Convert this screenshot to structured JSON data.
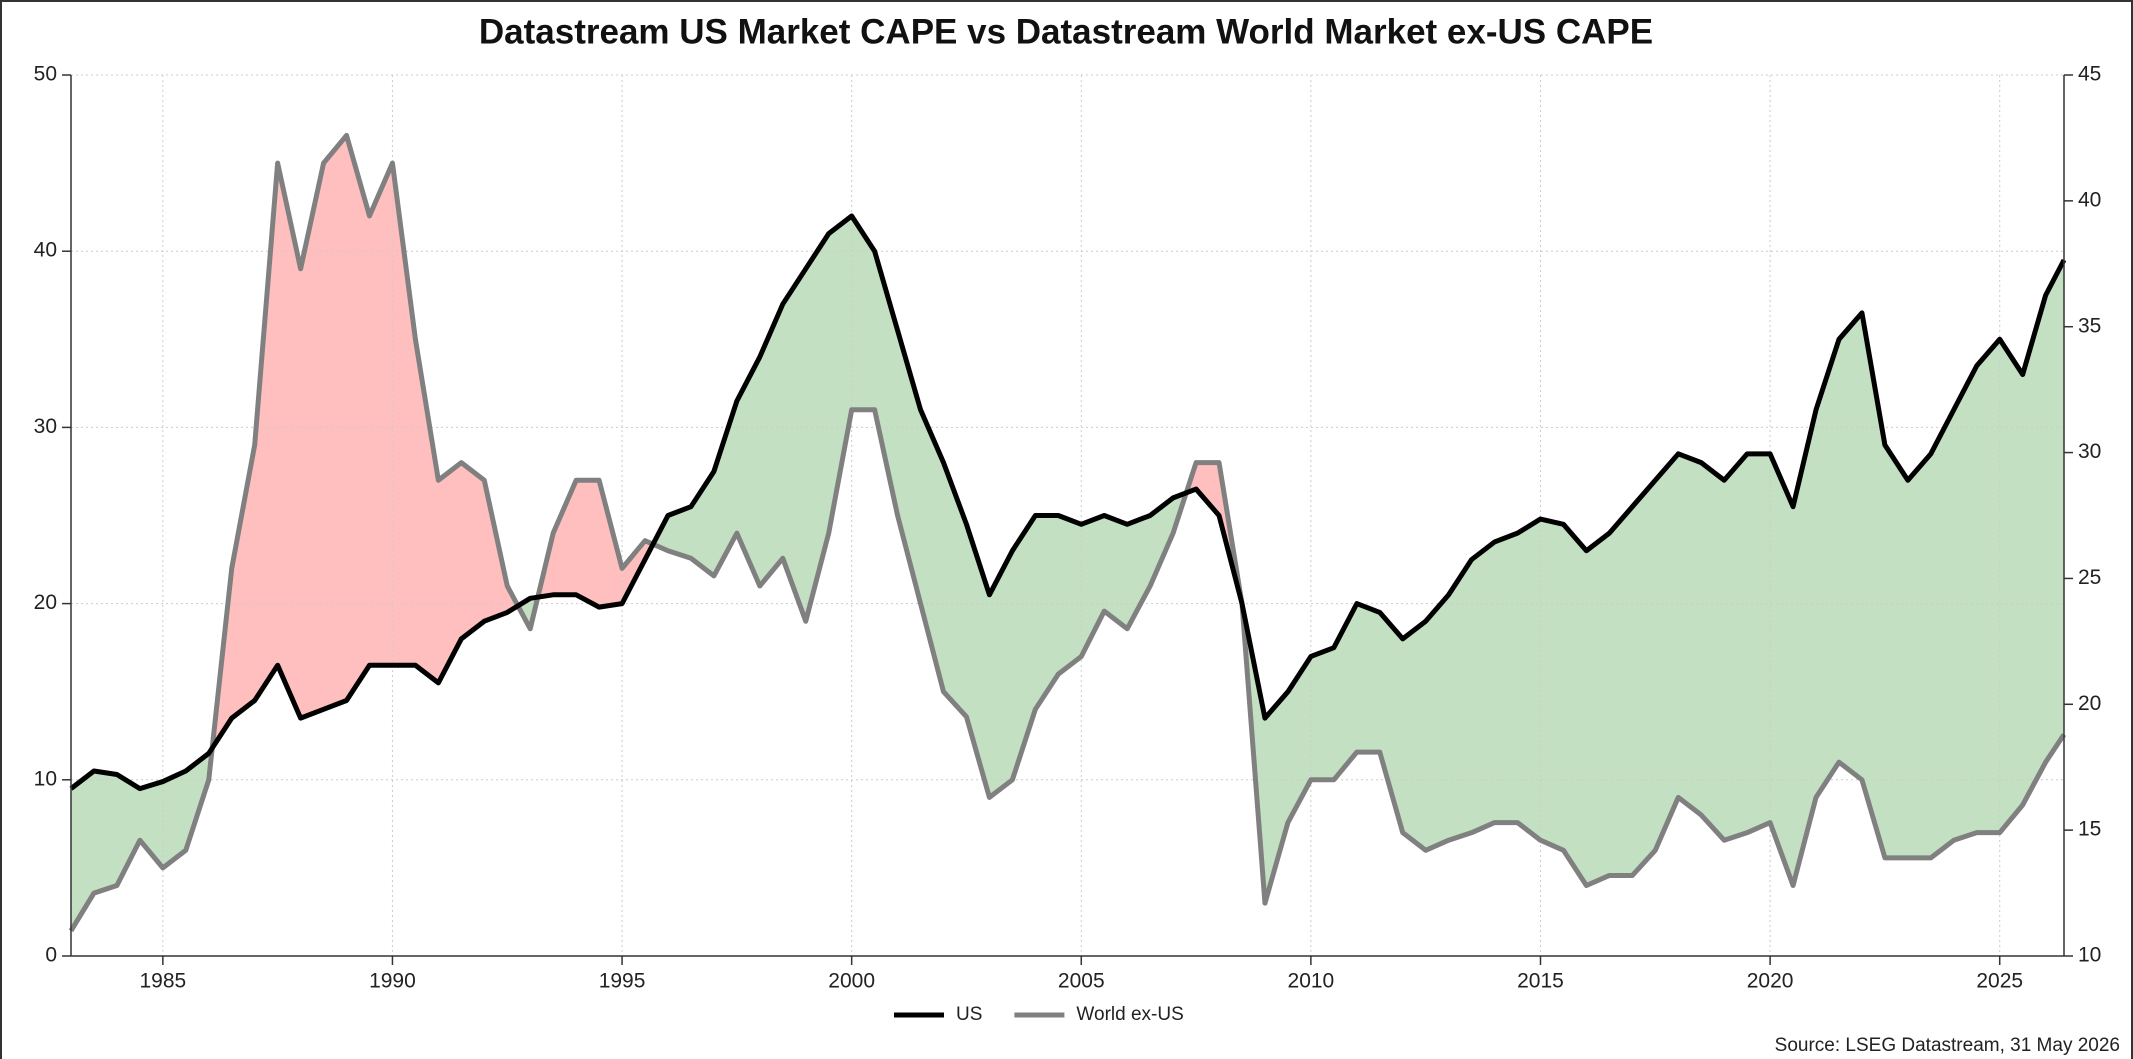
{
  "chart_data": {
    "type": "line",
    "title": "Datastream US Market CAPE vs Datastream World Market ex-US CAPE",
    "source": "Source: LSEG Datastream, 31 May 2026",
    "x": [
      1983.0,
      1983.5,
      1984.0,
      1984.5,
      1985.0,
      1985.5,
      1986.0,
      1986.5,
      1987.0,
      1987.5,
      1988.0,
      1988.5,
      1989.0,
      1989.5,
      1990.0,
      1990.5,
      1991.0,
      1991.5,
      1992.0,
      1992.5,
      1993.0,
      1993.5,
      1994.0,
      1994.5,
      1995.0,
      1995.5,
      1996.0,
      1996.5,
      1997.0,
      1997.5,
      1998.0,
      1998.5,
      1999.0,
      1999.5,
      2000.0,
      2000.5,
      2001.0,
      2001.5,
      2002.0,
      2002.5,
      2003.0,
      2003.5,
      2004.0,
      2004.5,
      2005.0,
      2005.5,
      2006.0,
      2006.5,
      2007.0,
      2007.5,
      2008.0,
      2008.5,
      2009.0,
      2009.5,
      2010.0,
      2010.5,
      2011.0,
      2011.5,
      2012.0,
      2012.5,
      2013.0,
      2013.5,
      2014.0,
      2014.5,
      2015.0,
      2015.5,
      2016.0,
      2016.5,
      2017.0,
      2017.5,
      2018.0,
      2018.5,
      2019.0,
      2019.5,
      2020.0,
      2020.5,
      2021.0,
      2021.5,
      2022.0,
      2022.5,
      2023.0,
      2023.5,
      2024.0,
      2024.5,
      2025.0,
      2025.5,
      2026.0,
      2026.4
    ],
    "series": [
      {
        "name": "US",
        "color": "#000000",
        "axis": "y",
        "values": [
          9.5,
          10.5,
          10.3,
          9.5,
          9.9,
          10.5,
          11.5,
          13.5,
          14.5,
          16.5,
          13.5,
          14.0,
          14.5,
          16.5,
          16.5,
          16.5,
          15.5,
          18.0,
          19.0,
          19.5,
          20.3,
          20.5,
          20.5,
          19.8,
          20.0,
          22.5,
          25.0,
          25.5,
          27.5,
          31.5,
          34.0,
          37.0,
          39.0,
          41.0,
          42.0,
          40.0,
          35.5,
          31.0,
          28.0,
          24.5,
          20.5,
          23.0,
          25.0,
          25.0,
          24.5,
          25.0,
          24.5,
          25.0,
          26.0,
          26.5,
          25.0,
          20.0,
          13.5,
          15.0,
          17.0,
          17.5,
          20.0,
          19.5,
          18.0,
          19.0,
          20.5,
          22.5,
          23.5,
          24.0,
          24.8,
          24.5,
          23.0,
          24.0,
          25.5,
          27.0,
          28.5,
          28.0,
          27.0,
          28.5,
          28.5,
          25.5,
          31.0,
          35.0,
          36.5,
          29.0,
          27.0,
          28.5,
          31.0,
          33.5,
          35.0,
          33.0,
          37.5,
          39.5
        ]
      },
      {
        "name": "World ex-US",
        "color": "#808080",
        "axis": "y2",
        "values": [
          11.0,
          12.5,
          12.8,
          14.6,
          13.5,
          14.2,
          17.0,
          25.4,
          30.3,
          41.5,
          37.3,
          41.5,
          42.6,
          39.4,
          41.5,
          34.5,
          28.9,
          29.6,
          28.9,
          24.7,
          23.0,
          26.8,
          28.9,
          28.9,
          25.4,
          26.5,
          26.1,
          25.8,
          25.1,
          26.8,
          24.7,
          25.8,
          23.3,
          26.8,
          31.7,
          31.7,
          27.5,
          24.0,
          20.5,
          19.5,
          16.3,
          17.0,
          19.8,
          21.2,
          21.9,
          23.7,
          23.0,
          24.7,
          26.8,
          29.6,
          29.6,
          24.0,
          12.1,
          15.3,
          17.0,
          17.0,
          18.1,
          18.1,
          14.9,
          14.2,
          14.6,
          14.9,
          15.3,
          15.3,
          14.6,
          14.2,
          12.8,
          13.2,
          13.2,
          14.2,
          16.3,
          15.6,
          14.6,
          14.9,
          15.3,
          12.8,
          16.3,
          17.7,
          17.0,
          13.9,
          13.9,
          13.9,
          14.6,
          14.9,
          14.9,
          16.0,
          17.7,
          18.8
        ]
      }
    ],
    "fill_colors": {
      "y_above": "#c3e0c3",
      "y2_above": "#ffbfbf"
    },
    "xlim": [
      1983.0,
      2026.4
    ],
    "xticks": [
      1985,
      1990,
      1995,
      2000,
      2005,
      2010,
      2015,
      2020,
      2025
    ],
    "ylim": [
      0,
      50
    ],
    "yticks": [
      0,
      10,
      20,
      30,
      40,
      50
    ],
    "y2lim": [
      10,
      45
    ],
    "y2ticks": [
      10,
      15,
      20,
      25,
      30,
      35,
      40,
      45
    ],
    "grid": true,
    "legend": "bottom"
  }
}
